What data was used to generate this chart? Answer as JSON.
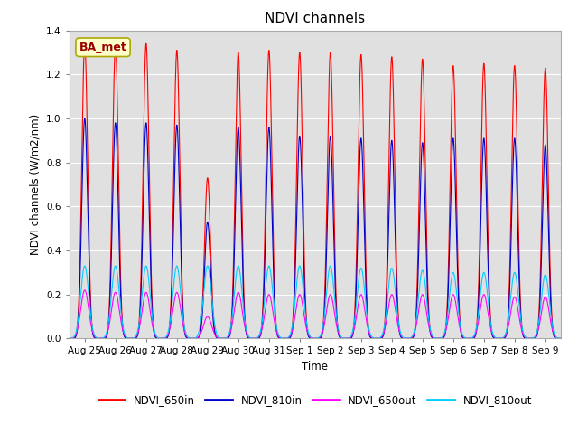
{
  "title": "NDVI channels",
  "ylabel": "NDVI channels (W/m2/nm)",
  "xlabel": "Time",
  "ylim": [
    0,
    1.4
  ],
  "yticks": [
    0.0,
    0.2,
    0.4,
    0.6,
    0.8,
    1.0,
    1.2,
    1.4
  ],
  "bg_color": "#e0e0e0",
  "fig_color": "#ffffff",
  "annotation_text": "BA_met",
  "annotation_facecolor": "#ffffcc",
  "annotation_edgecolor": "#aaaa00",
  "annotation_textcolor": "#990000",
  "colors": {
    "NDVI_650in": "#ff0000",
    "NDVI_810in": "#0000cc",
    "NDVI_650out": "#ff00ff",
    "NDVI_810out": "#00ccff"
  },
  "num_days": 16,
  "x_labels": [
    "Aug 25",
    "Aug 26",
    "Aug 27",
    "Aug 28",
    "Aug 29",
    "Aug 30",
    "Aug 31",
    "Sep 1",
    "Sep 2",
    "Sep 3",
    "Sep 4",
    "Sep 5",
    "Sep 6",
    "Sep 7",
    "Sep 8",
    "Sep 9"
  ],
  "peak_650in": [
    1.34,
    1.33,
    1.34,
    1.31,
    0.73,
    1.3,
    1.31,
    1.3,
    1.3,
    1.29,
    1.28,
    1.27,
    1.24,
    1.25,
    1.24,
    1.23
  ],
  "peak_810in": [
    1.0,
    0.98,
    0.98,
    0.97,
    0.53,
    0.96,
    0.96,
    0.92,
    0.92,
    0.91,
    0.9,
    0.89,
    0.91,
    0.91,
    0.91,
    0.88
  ],
  "peak_650out": [
    0.22,
    0.21,
    0.21,
    0.21,
    0.1,
    0.21,
    0.2,
    0.2,
    0.2,
    0.2,
    0.2,
    0.2,
    0.2,
    0.2,
    0.19,
    0.19
  ],
  "peak_810out": [
    0.33,
    0.33,
    0.33,
    0.33,
    0.33,
    0.33,
    0.33,
    0.33,
    0.33,
    0.32,
    0.32,
    0.31,
    0.3,
    0.3,
    0.3,
    0.29
  ],
  "narrowness_in": 55,
  "narrowness_out": 30,
  "pts_per_day": 500
}
